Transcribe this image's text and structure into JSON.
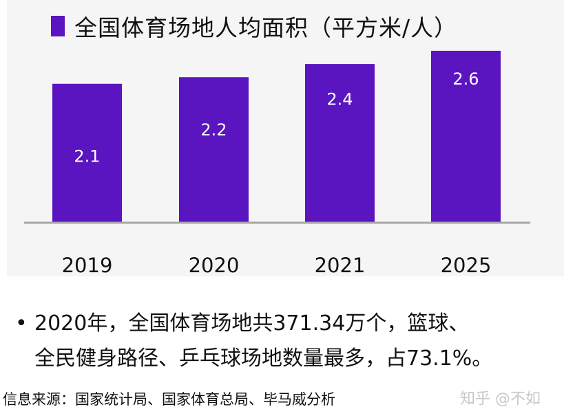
{
  "chart_data": {
    "type": "bar",
    "categories": [
      "2019",
      "2020",
      "2021",
      "2025"
    ],
    "series": [
      {
        "name": "全国体育场地人均面积（平方米/人）",
        "values": [
          2.1,
          2.2,
          2.4,
          2.6
        ]
      }
    ],
    "value_labels": [
      "2.1",
      "2.2",
      "2.4",
      "2.6"
    ],
    "ylim": [
      0,
      3.3
    ],
    "grid": false,
    "legend": "top-left",
    "bar_color": "#5a14c0"
  },
  "note": {
    "bullet": "•",
    "line1": "2020年，全国体育场地共371.34万个，篮球、",
    "line2": "全民健身路径、乒乓球场地数量最多，占73.1%。"
  },
  "source": "信息来源：国家统计局、国家体育总局、毕马威分析",
  "watermark": "知乎 @不如"
}
